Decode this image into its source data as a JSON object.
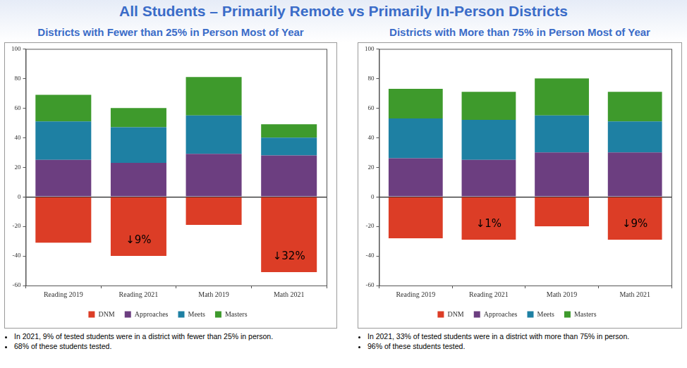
{
  "title": "All Students – Primarily Remote vs Primarily In-Person Districts",
  "chart_data": [
    {
      "type": "bar",
      "title": "Districts with Fewer than 25% in Person Most of Year",
      "categories": [
        "Reading 2019",
        "Reading 2021",
        "Math 2019",
        "Math 2021"
      ],
      "series": [
        {
          "name": "DNM",
          "color": "#dc3d26",
          "values": [
            -31,
            -40,
            -19,
            -51
          ]
        },
        {
          "name": "Approaches",
          "color": "#6c3e80",
          "values": [
            25,
            23,
            29,
            28
          ]
        },
        {
          "name": "Meets",
          "color": "#1e80a3",
          "values": [
            26,
            24,
            26,
            12
          ]
        },
        {
          "name": "Masters",
          "color": "#3e9a2c",
          "values": [
            18,
            13,
            26,
            9
          ]
        }
      ],
      "ylim": [
        -60,
        100
      ],
      "yticks": [
        -60,
        -40,
        -20,
        0,
        20,
        40,
        60,
        80,
        100
      ],
      "stacked": true,
      "grid": false,
      "legend": "bottom",
      "annotations": [
        {
          "category": "Reading 2021",
          "text": "↓9%"
        },
        {
          "category": "Math 2021",
          "text": "↓32%"
        }
      ],
      "notes": [
        "In 2021, 9% of tested students were in a district with fewer than 25% in person.",
        "68% of these students tested."
      ]
    },
    {
      "type": "bar",
      "title": "Districts with More than 75% in Person Most of Year",
      "categories": [
        "Reading 2019",
        "Reading 2021",
        "Math 2019",
        "Math 2021"
      ],
      "series": [
        {
          "name": "DNM",
          "color": "#dc3d26",
          "values": [
            -28,
            -29,
            -20,
            -29
          ]
        },
        {
          "name": "Approaches",
          "color": "#6c3e80",
          "values": [
            26,
            25,
            30,
            30
          ]
        },
        {
          "name": "Meets",
          "color": "#1e80a3",
          "values": [
            27,
            27,
            25,
            21
          ]
        },
        {
          "name": "Masters",
          "color": "#3e9a2c",
          "values": [
            20,
            19,
            25,
            20
          ]
        }
      ],
      "ylim": [
        -60,
        100
      ],
      "yticks": [
        -60,
        -40,
        -20,
        0,
        20,
        40,
        60,
        80,
        100
      ],
      "stacked": true,
      "grid": false,
      "legend": "bottom",
      "annotations": [
        {
          "category": "Reading 2021",
          "text": "↓1%"
        },
        {
          "category": "Math 2021",
          "text": "↓9%"
        }
      ],
      "notes": [
        "In 2021, 33% of tested students were in a district with more than 75% in person.",
        "96% of these students tested."
      ]
    }
  ]
}
